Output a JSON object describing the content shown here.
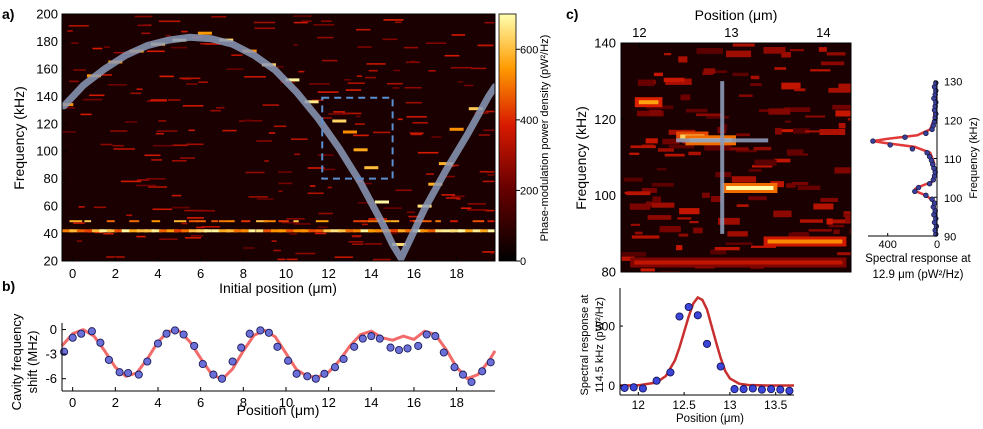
{
  "panel_labels": {
    "a": "a)",
    "b": "b)",
    "c": "c)"
  },
  "colorbar": {
    "label": "Phase-modulation power density (pW²/Hz)",
    "ticks": [
      "0",
      "200",
      "400",
      "600"
    ],
    "range": [
      0,
      700
    ]
  },
  "chart_data": [
    {
      "id": "a",
      "type": "heatmap",
      "xlabel": "Initial position (μm)",
      "ylabel": "Frequency (kHz)",
      "xlim": [
        -0.5,
        19.8
      ],
      "ylim": [
        20,
        200
      ],
      "xticks": [
        0,
        2,
        4,
        6,
        8,
        10,
        12,
        14,
        16,
        18
      ],
      "yticks": [
        20,
        40,
        60,
        80,
        100,
        120,
        140,
        160,
        180,
        200
      ],
      "overlay_curve": {
        "x": [
          -0.4,
          0.5,
          1.5,
          2.5,
          3.5,
          4.5,
          5.5,
          6.5,
          7.5,
          8.5,
          9.5,
          10.5,
          11.5,
          12.5,
          13.5,
          14.5,
          15.0,
          15.4,
          15.8,
          16.5,
          17.5,
          18.5,
          19.5,
          19.8
        ],
        "y": [
          133,
          148,
          160,
          170,
          177,
          181,
          183,
          182,
          178,
          170,
          159,
          143,
          124,
          102,
          77,
          48,
          32,
          22,
          35,
          58,
          86,
          112,
          140,
          147
        ]
      },
      "highlight_box": {
        "x": [
          11.7,
          15.0
        ],
        "y": [
          80,
          139
        ]
      },
      "bright_points": [
        {
          "x": -0.3,
          "y": 134
        },
        {
          "x": 1.0,
          "y": 155
        },
        {
          "x": 2.0,
          "y": 165
        },
        {
          "x": 3.0,
          "y": 173
        },
        {
          "x": 4.0,
          "y": 178
        },
        {
          "x": 5.0,
          "y": 181
        },
        {
          "x": 6.2,
          "y": 186
        },
        {
          "x": 7.2,
          "y": 181
        },
        {
          "x": 8.3,
          "y": 173
        },
        {
          "x": 9.2,
          "y": 163
        },
        {
          "x": 10.3,
          "y": 152
        },
        {
          "x": 11.2,
          "y": 136
        },
        {
          "x": 12.5,
          "y": 122
        },
        {
          "x": 13.0,
          "y": 114
        },
        {
          "x": 13.5,
          "y": 101
        },
        {
          "x": 14.0,
          "y": 88
        },
        {
          "x": 14.5,
          "y": 63
        },
        {
          "x": 15.3,
          "y": 32
        },
        {
          "x": 16.5,
          "y": 60
        },
        {
          "x": 17.0,
          "y": 76
        },
        {
          "x": 17.5,
          "y": 91
        },
        {
          "x": 18.0,
          "y": 116
        },
        {
          "x": 18.9,
          "y": 131
        }
      ],
      "band_y": 42
    },
    {
      "id": "b",
      "type": "scatter",
      "xlabel": "Position (μm)",
      "ylabel": "Cavity frequency shift (MHz)",
      "ylabel_lines": [
        "Cavity frequency",
        "shift (MHz)"
      ],
      "xlim": [
        -0.5,
        19.8
      ],
      "ylim": [
        -7.5,
        0.8
      ],
      "xticks": [
        0,
        2,
        4,
        6,
        8,
        10,
        12,
        14,
        16,
        18
      ],
      "yticks": [
        0,
        -3,
        -6
      ],
      "ytick_labels": [
        "0",
        "-3",
        "-6"
      ],
      "points": {
        "x": [
          -0.4,
          0.0,
          0.4,
          0.9,
          1.3,
          1.7,
          2.2,
          2.6,
          3.1,
          3.5,
          4.0,
          4.4,
          4.8,
          5.2,
          5.7,
          6.1,
          6.6,
          7.0,
          7.5,
          7.9,
          8.3,
          8.8,
          9.2,
          9.6,
          10.1,
          10.5,
          11.0,
          11.4,
          11.8,
          12.3,
          12.7,
          13.2,
          13.6,
          14.0,
          14.4,
          14.9,
          15.3,
          15.7,
          16.2,
          16.6,
          17.0,
          17.4,
          17.9,
          18.3,
          18.7,
          19.2,
          19.6
        ],
        "y": [
          -2.7,
          -1.0,
          -0.5,
          -0.2,
          -1.6,
          -3.7,
          -5.2,
          -5.3,
          -5.5,
          -3.9,
          -1.7,
          -0.5,
          -0.1,
          -0.6,
          -2.0,
          -4.2,
          -5.5,
          -6.0,
          -3.9,
          -2.2,
          -0.5,
          -0.1,
          -0.4,
          -2.1,
          -3.8,
          -5.4,
          -5.7,
          -6.0,
          -5.4,
          -4.6,
          -3.6,
          -2.1,
          -1.1,
          -0.8,
          -1.1,
          -2.2,
          -2.5,
          -2.3,
          -2.0,
          -0.6,
          -0.8,
          -2.8,
          -4.6,
          -5.5,
          -6.4,
          -5.1,
          -4.0
        ]
      },
      "fit_curve": {
        "x": [
          -0.5,
          0.0,
          0.5,
          1.0,
          1.5,
          2.0,
          2.5,
          3.0,
          3.5,
          4.0,
          4.5,
          5.0,
          5.5,
          6.0,
          6.5,
          7.0,
          7.5,
          8.0,
          8.5,
          9.0,
          9.5,
          10.0,
          10.5,
          11.0,
          11.5,
          12.0,
          12.5,
          13.0,
          13.5,
          14.0,
          14.5,
          15.0,
          15.5,
          16.0,
          16.5,
          17.0,
          17.5,
          18.0,
          18.5,
          19.0,
          19.5,
          19.8
        ],
        "y": [
          -2.0,
          -0.5,
          0.0,
          -0.8,
          -2.6,
          -4.6,
          -5.7,
          -5.3,
          -3.6,
          -1.5,
          -0.2,
          -0.2,
          -1.5,
          -3.5,
          -5.4,
          -6.1,
          -4.8,
          -2.6,
          -0.7,
          -0.1,
          -0.9,
          -2.9,
          -4.9,
          -5.7,
          -5.8,
          -5.2,
          -3.8,
          -2.0,
          -0.6,
          -0.2,
          -1.0,
          -1.3,
          -0.8,
          -1.2,
          -0.2,
          -0.6,
          -2.4,
          -4.6,
          -6.0,
          -5.5,
          -3.9,
          -2.6
        ]
      }
    },
    {
      "id": "c_main",
      "type": "heatmap",
      "xlabel": "Position (μm)",
      "ylabel": "Frequency (kHz)",
      "xlim": [
        11.8,
        14.3
      ],
      "ylim": [
        80,
        140
      ],
      "xticks": [
        12,
        13,
        14
      ],
      "yticks": [
        80,
        100,
        120,
        140
      ],
      "crosshair": {
        "x": 12.9,
        "y": 114.5,
        "x_span": [
          12.4,
          13.4
        ],
        "y_span": [
          90,
          130
        ]
      },
      "features": [
        {
          "x": [
            11.95,
            12.25
          ],
          "y": 124.5,
          "level": 0.8
        },
        {
          "x": [
            12.4,
            12.75
          ],
          "y": 115.5,
          "level": 0.9
        },
        {
          "x": [
            12.5,
            13.05
          ],
          "y": 114.5,
          "level": 1.0
        },
        {
          "x": [
            12.9,
            13.5
          ],
          "y": 102.0,
          "level": 1.0
        },
        {
          "x": [
            13.35,
            14.25
          ],
          "y": 88.0,
          "level": 0.75
        },
        {
          "x": [
            11.9,
            14.25
          ],
          "y": 82.5,
          "level": 0.5
        }
      ]
    },
    {
      "id": "c_side",
      "type": "line",
      "xlabel": "Spectral response at 12.9 μm (pW²/Hz)",
      "xlabel_lines": [
        "Spectral response at",
        "12.9 μm (pW²/Hz)"
      ],
      "ylabel": "Frequency (kHz)",
      "xlim": [
        0,
        560
      ],
      "x_reversed": true,
      "ylim": [
        90,
        130
      ],
      "xticks": [
        400,
        0
      ],
      "yticks": [
        90,
        100,
        110,
        120,
        130
      ],
      "points": {
        "y": [
          90.5,
          91.5,
          92.5,
          93.5,
          94.5,
          95.5,
          96.5,
          97.5,
          98.5,
          99.5,
          100.5,
          101.5,
          102.5,
          103.5,
          104.5,
          105.5,
          106.5,
          107.5,
          108.5,
          109.5,
          110.5,
          111.5,
          112.5,
          113.5,
          114.5,
          115.5,
          116.5,
          117.5,
          118.5,
          119.5,
          120.5,
          121.5,
          122.5,
          123.5,
          124.5,
          125.5,
          126.5,
          127.5,
          128.5,
          129.5
        ],
        "x": [
          10,
          15,
          5,
          20,
          10,
          25,
          15,
          30,
          20,
          40,
          90,
          180,
          150,
          60,
          30,
          20,
          15,
          25,
          35,
          45,
          60,
          80,
          200,
          380,
          520,
          260,
          90,
          40,
          30,
          20,
          15,
          10,
          20,
          15,
          10,
          25,
          15,
          10,
          20,
          10
        ]
      },
      "fit_curve": {
        "y": [
          90,
          96,
          99,
          100.5,
          101.5,
          102.2,
          103,
          104,
          106,
          109,
          111.5,
          113,
          114,
          114.5,
          115,
          116,
          117.5,
          120,
          125,
          130
        ],
        "x": [
          12,
          15,
          30,
          90,
          170,
          175,
          120,
          40,
          20,
          25,
          55,
          180,
          420,
          520,
          420,
          160,
          55,
          25,
          15,
          12
        ]
      }
    },
    {
      "id": "c_bottom",
      "type": "scatter",
      "xlabel": "Position (μm)",
      "ylabel": "Spectral response at 114.5 kHz (pW²/Hz)",
      "ylabel_lines": [
        "Spectral response at",
        "114.5 kHz (pW²/Hz)"
      ],
      "xlim": [
        11.8,
        13.7
      ],
      "ylim": [
        -80,
        820
      ],
      "xticks": [
        12,
        12.5,
        13,
        13.5
      ],
      "yticks": [
        0,
        500
      ],
      "points": {
        "x": [
          11.85,
          11.95,
          12.05,
          12.2,
          12.35,
          12.45,
          12.55,
          12.65,
          12.75,
          12.9,
          13.05,
          13.15,
          13.25,
          13.35,
          13.45,
          13.55,
          13.65
        ],
        "y": [
          -20,
          -15,
          -25,
          40,
          110,
          580,
          660,
          590,
          350,
          160,
          -30,
          -30,
          -25,
          -35,
          -30,
          -35,
          -45
        ]
      },
      "fit_curve": {
        "x": [
          11.8,
          12.0,
          12.2,
          12.3,
          12.4,
          12.45,
          12.5,
          12.55,
          12.6,
          12.65,
          12.7,
          12.75,
          12.8,
          12.85,
          12.9,
          12.95,
          13.0,
          13.1,
          13.2,
          13.4,
          13.7
        ],
        "y": [
          0,
          2,
          25,
          80,
          210,
          320,
          450,
          580,
          690,
          740,
          720,
          640,
          500,
          360,
          230,
          120,
          60,
          15,
          4,
          0,
          0
        ]
      }
    }
  ]
}
